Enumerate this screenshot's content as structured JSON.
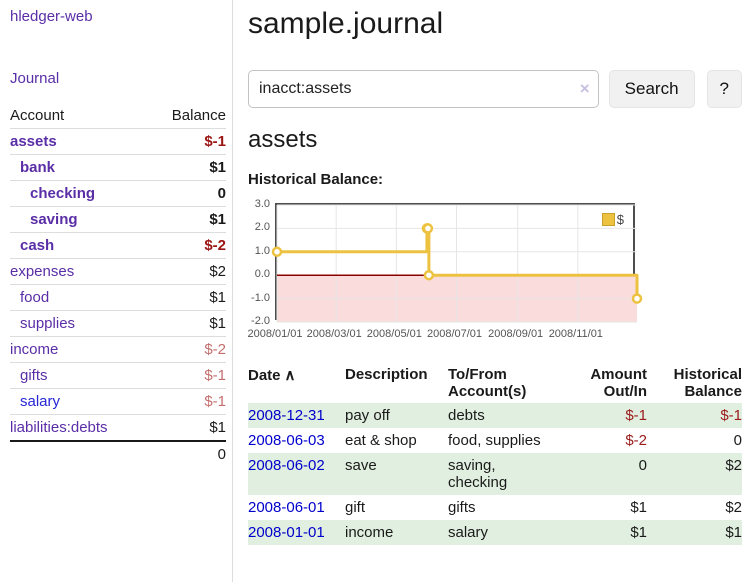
{
  "app": {
    "title": "hledger-web"
  },
  "sidebar": {
    "journal_link": "Journal",
    "table": {
      "headers": {
        "account": "Account",
        "balance": "Balance"
      },
      "accounts": [
        {
          "name": "assets",
          "balance": "$-1"
        },
        {
          "name": "bank",
          "balance": "$1"
        },
        {
          "name": "checking",
          "balance": "0"
        },
        {
          "name": "saving",
          "balance": "$1"
        },
        {
          "name": "cash",
          "balance": "$-2"
        },
        {
          "name": "expenses",
          "balance": "$2"
        },
        {
          "name": "food",
          "balance": "$1"
        },
        {
          "name": "supplies",
          "balance": "$1"
        },
        {
          "name": "income",
          "balance": "$-2"
        },
        {
          "name": "gifts",
          "balance": "$-1"
        },
        {
          "name": "salary",
          "balance": "$-1"
        },
        {
          "name": "liabilities:debts",
          "balance": "$1"
        }
      ],
      "total": "0"
    }
  },
  "header": {
    "title": "sample.journal"
  },
  "search": {
    "value": "inacct:assets",
    "clear_icon": "×",
    "button_label": "Search",
    "help_label": "?"
  },
  "account_page": {
    "heading": "assets",
    "chart_label": "Historical Balance:"
  },
  "chart_data": {
    "type": "line",
    "title": "Historical Balance",
    "step": true,
    "ylim": [
      -2,
      3
    ],
    "x_range_days": 365,
    "x_ticks": [
      "2008/01/01",
      "2008/03/01",
      "2008/05/01",
      "2008/07/01",
      "2008/09/01",
      "2008/11/01"
    ],
    "x_tick_days": [
      0,
      60,
      121,
      182,
      244,
      305
    ],
    "y_ticks": [
      3.0,
      2.0,
      1.0,
      0.0,
      -1.0,
      -2.0
    ],
    "y_tick_labels": [
      "3.0",
      "2.0",
      "1.0",
      "0.0",
      "-1.0",
      "-2.0"
    ],
    "grid_color": "#e6e6e6",
    "zero_line_color": "#8b0000",
    "negative_region_fill": "#fbdcdc",
    "legend": {
      "label": "$",
      "position": "top-right",
      "color": "#edc240"
    },
    "series": [
      {
        "name": "$",
        "color": "#edc240",
        "points": [
          {
            "date": "2008-01-01",
            "day": 0,
            "value": 1
          },
          {
            "date": "2008-06-01",
            "day": 152,
            "value": 2
          },
          {
            "date": "2008-06-02",
            "day": 153,
            "value": 2
          },
          {
            "date": "2008-06-03",
            "day": 154,
            "value": 0
          },
          {
            "date": "2008-12-31",
            "day": 365,
            "value": -1
          }
        ]
      }
    ]
  },
  "transactions": {
    "sort_icon": "∧",
    "headers": {
      "date": "Date",
      "description": "Description",
      "accounts": "To/From Account(s)",
      "amount": "Amount Out/In",
      "balance": "Historical Balance"
    },
    "rows": [
      {
        "date": "2008-12-31",
        "description": "pay off",
        "accounts": "debts",
        "amount": "$-1",
        "balance": "$-1"
      },
      {
        "date": "2008-06-03",
        "description": "eat & shop",
        "accounts": "food, supplies",
        "amount": "$-2",
        "balance": "0"
      },
      {
        "date": "2008-06-02",
        "description": "save",
        "accounts": "saving, checking",
        "amount": "0",
        "balance": "$2"
      },
      {
        "date": "2008-06-01",
        "description": "gift",
        "accounts": "gifts",
        "amount": "$1",
        "balance": "$2"
      },
      {
        "date": "2008-01-01",
        "description": "income",
        "accounts": "salary",
        "amount": "$1",
        "balance": "$1"
      }
    ]
  }
}
